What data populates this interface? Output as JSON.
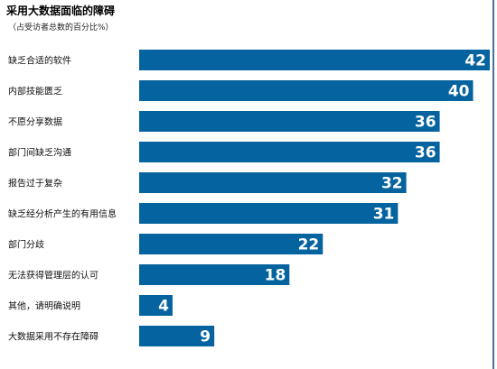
{
  "header": {
    "title": "采用大数据面临的障碍",
    "subtitle": "（占受访者总数的百分比%）"
  },
  "colors": {
    "bar": "#05649f",
    "background": "#ffffff",
    "value_text": "#ffffff"
  },
  "chart_data": {
    "type": "bar",
    "orientation": "horizontal",
    "title": "采用大数据面临的障碍",
    "subtitle": "（占受访者总数的百分比%）",
    "xlabel": "",
    "ylabel": "",
    "xlim": [
      0,
      42
    ],
    "grid": false,
    "legend": "none",
    "categories": [
      "缺乏合适的软件",
      "内部技能匮乏",
      "不愿分享数据",
      "部门间缺乏沟通",
      "报告过于复杂",
      "缺乏经分析产生的有用信息",
      "部门分歧",
      "无法获得管理层的认可",
      "其他，请明确说明",
      "大数据采用不存在障碍"
    ],
    "values": [
      42,
      40,
      36,
      36,
      32,
      31,
      22,
      18,
      4,
      9
    ]
  }
}
